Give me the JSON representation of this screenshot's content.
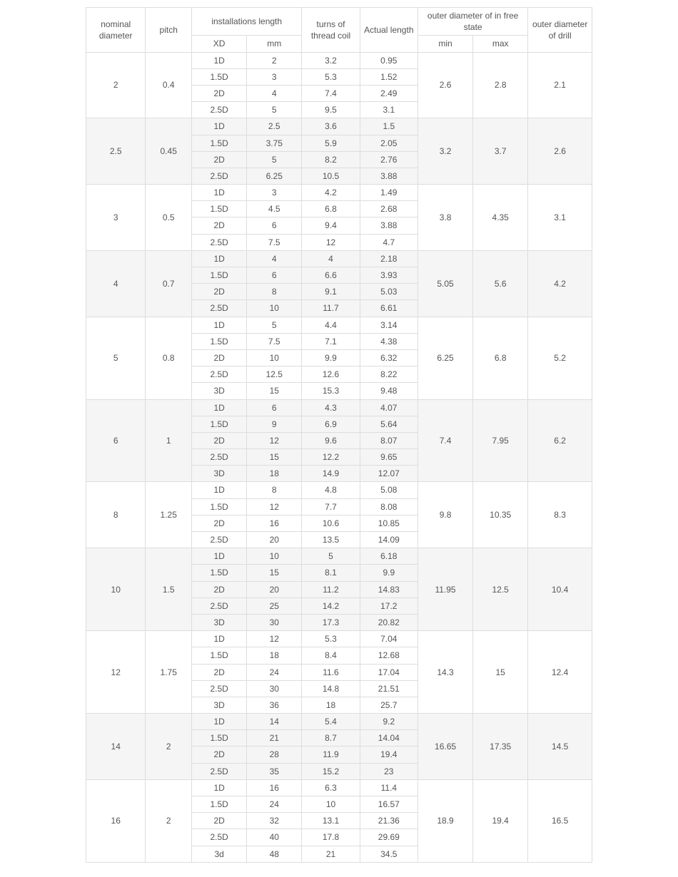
{
  "table": {
    "type": "table",
    "background_color": "#ffffff",
    "alt_row_color": "#f5f5f5",
    "border_color": "#dddddd",
    "text_color": "#555555",
    "font_size_pt": 9,
    "headers": {
      "nominal_diameter": "nominal diameter",
      "pitch": "pitch",
      "installations_length": "installations length",
      "xd": "XD",
      "mm": "mm",
      "turns_of_thread_coil": "turns of thread coil",
      "actual_length": "Actual length",
      "outer_free_state": "outer diameter of in free state",
      "min": "min",
      "max": "max",
      "outer_drill": "outer diameter of drill"
    },
    "groups": [
      {
        "nominal_diameter": "2",
        "pitch": "0.4",
        "outer_min": "2.6",
        "outer_max": "2.8",
        "drill": "2.1",
        "sub": [
          {
            "xd": "1D",
            "mm": "2",
            "turns": "3.2",
            "actual": "0.95"
          },
          {
            "xd": "1.5D",
            "mm": "3",
            "turns": "5.3",
            "actual": "1.52"
          },
          {
            "xd": "2D",
            "mm": "4",
            "turns": "7.4",
            "actual": "2.49"
          },
          {
            "xd": "2.5D",
            "mm": "5",
            "turns": "9.5",
            "actual": "3.1"
          }
        ]
      },
      {
        "nominal_diameter": "2.5",
        "pitch": "0.45",
        "outer_min": "3.2",
        "outer_max": "3.7",
        "drill": "2.6",
        "sub": [
          {
            "xd": "1D",
            "mm": "2.5",
            "turns": "3.6",
            "actual": "1.5"
          },
          {
            "xd": "1.5D",
            "mm": "3.75",
            "turns": "5.9",
            "actual": "2.05"
          },
          {
            "xd": "2D",
            "mm": "5",
            "turns": "8.2",
            "actual": "2.76"
          },
          {
            "xd": "2.5D",
            "mm": "6.25",
            "turns": "10.5",
            "actual": "3.88"
          }
        ]
      },
      {
        "nominal_diameter": "3",
        "pitch": "0.5",
        "outer_min": "3.8",
        "outer_max": "4.35",
        "drill": "3.1",
        "sub": [
          {
            "xd": "1D",
            "mm": "3",
            "turns": "4.2",
            "actual": "1.49"
          },
          {
            "xd": "1.5D",
            "mm": "4.5",
            "turns": "6.8",
            "actual": "2.68"
          },
          {
            "xd": "2D",
            "mm": "6",
            "turns": "9.4",
            "actual": "3.88"
          },
          {
            "xd": "2.5D",
            "mm": "7.5",
            "turns": "12",
            "actual": "4.7"
          }
        ]
      },
      {
        "nominal_diameter": "4",
        "pitch": "0.7",
        "outer_min": "5.05",
        "outer_max": "5.6",
        "drill": "4.2",
        "sub": [
          {
            "xd": "1D",
            "mm": "4",
            "turns": "4",
            "actual": "2.18"
          },
          {
            "xd": "1.5D",
            "mm": "6",
            "turns": "6.6",
            "actual": "3.93"
          },
          {
            "xd": "2D",
            "mm": "8",
            "turns": "9.1",
            "actual": "5.03"
          },
          {
            "xd": "2.5D",
            "mm": "10",
            "turns": "11.7",
            "actual": "6.61"
          }
        ]
      },
      {
        "nominal_diameter": "5",
        "pitch": "0.8",
        "outer_min": "6.25",
        "outer_max": "6.8",
        "drill": "5.2",
        "sub": [
          {
            "xd": "1D",
            "mm": "5",
            "turns": "4.4",
            "actual": "3.14"
          },
          {
            "xd": "1.5D",
            "mm": "7.5",
            "turns": "7.1",
            "actual": "4.38"
          },
          {
            "xd": "2D",
            "mm": "10",
            "turns": "9.9",
            "actual": "6.32"
          },
          {
            "xd": "2.5D",
            "mm": "12.5",
            "turns": "12.6",
            "actual": "8.22"
          },
          {
            "xd": "3D",
            "mm": "15",
            "turns": "15.3",
            "actual": "9.48"
          }
        ]
      },
      {
        "nominal_diameter": "6",
        "pitch": "1",
        "outer_min": "7.4",
        "outer_max": "7.95",
        "drill": "6.2",
        "sub": [
          {
            "xd": "1D",
            "mm": "6",
            "turns": "4.3",
            "actual": "4.07"
          },
          {
            "xd": "1.5D",
            "mm": "9",
            "turns": "6.9",
            "actual": "5.64"
          },
          {
            "xd": "2D",
            "mm": "12",
            "turns": "9.6",
            "actual": "8.07"
          },
          {
            "xd": "2.5D",
            "mm": "15",
            "turns": "12.2",
            "actual": "9.65"
          },
          {
            "xd": "3D",
            "mm": "18",
            "turns": "14.9",
            "actual": "12.07"
          }
        ]
      },
      {
        "nominal_diameter": "8",
        "pitch": "1.25",
        "outer_min": "9.8",
        "outer_max": "10.35",
        "drill": "8.3",
        "sub": [
          {
            "xd": "1D",
            "mm": "8",
            "turns": "4.8",
            "actual": "5.08"
          },
          {
            "xd": "1.5D",
            "mm": "12",
            "turns": "7.7",
            "actual": "8.08"
          },
          {
            "xd": "2D",
            "mm": "16",
            "turns": "10.6",
            "actual": "10.85"
          },
          {
            "xd": "2.5D",
            "mm": "20",
            "turns": "13.5",
            "actual": "14.09"
          }
        ]
      },
      {
        "nominal_diameter": "10",
        "pitch": "1.5",
        "outer_min": "11.95",
        "outer_max": "12.5",
        "drill": "10.4",
        "sub": [
          {
            "xd": "1D",
            "mm": "10",
            "turns": "5",
            "actual": "6.18"
          },
          {
            "xd": "1.5D",
            "mm": "15",
            "turns": "8.1",
            "actual": "9.9"
          },
          {
            "xd": "2D",
            "mm": "20",
            "turns": "11.2",
            "actual": "14.83"
          },
          {
            "xd": "2.5D",
            "mm": "25",
            "turns": "14.2",
            "actual": "17.2"
          },
          {
            "xd": "3D",
            "mm": "30",
            "turns": "17.3",
            "actual": "20.82"
          }
        ]
      },
      {
        "nominal_diameter": "12",
        "pitch": "1.75",
        "outer_min": "14.3",
        "outer_max": "15",
        "drill": "12.4",
        "sub": [
          {
            "xd": "1D",
            "mm": "12",
            "turns": "5.3",
            "actual": "7.04"
          },
          {
            "xd": "1.5D",
            "mm": "18",
            "turns": "8.4",
            "actual": "12.68"
          },
          {
            "xd": "2D",
            "mm": "24",
            "turns": "11.6",
            "actual": "17.04"
          },
          {
            "xd": "2.5D",
            "mm": "30",
            "turns": "14.8",
            "actual": "21.51"
          },
          {
            "xd": "3D",
            "mm": "36",
            "turns": "18",
            "actual": "25.7"
          }
        ]
      },
      {
        "nominal_diameter": "14",
        "pitch": "2",
        "outer_min": "16.65",
        "outer_max": "17.35",
        "drill": "14.5",
        "sub": [
          {
            "xd": "1D",
            "mm": "14",
            "turns": "5.4",
            "actual": "9.2"
          },
          {
            "xd": "1.5D",
            "mm": "21",
            "turns": "8.7",
            "actual": "14.04"
          },
          {
            "xd": "2D",
            "mm": "28",
            "turns": "11.9",
            "actual": "19.4"
          },
          {
            "xd": "2.5D",
            "mm": "35",
            "turns": "15.2",
            "actual": "23"
          }
        ]
      },
      {
        "nominal_diameter": "16",
        "pitch": "2",
        "outer_min": "18.9",
        "outer_max": "19.4",
        "drill": "16.5",
        "sub": [
          {
            "xd": "1D",
            "mm": "16",
            "turns": "6.3",
            "actual": "11.4"
          },
          {
            "xd": "1.5D",
            "mm": "24",
            "turns": "10",
            "actual": "16.57"
          },
          {
            "xd": "2D",
            "mm": "32",
            "turns": "13.1",
            "actual": "21.36"
          },
          {
            "xd": "2.5D",
            "mm": "40",
            "turns": "17.8",
            "actual": "29.69"
          },
          {
            "xd": "3d",
            "mm": "48",
            "turns": "21",
            "actual": "34.5"
          }
        ]
      }
    ]
  }
}
